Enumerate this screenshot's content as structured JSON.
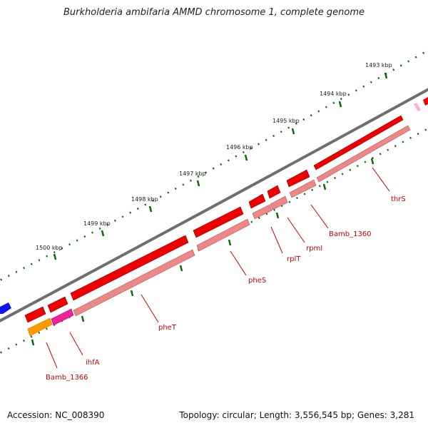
{
  "title": "Burkholderia ambifaria AMMD chromosome 1, complete genome",
  "footer": {
    "accession": "Accession: NC_008390",
    "topology": "Topology: circular; Length: 3,556,545 bp; Genes: 3,281"
  },
  "scale_ticks": [
    "1493 kbp",
    "1494 kbp",
    "1495 kbp",
    "1496 kbp",
    "1497 kbp",
    "1498 kbp",
    "1499 kbp",
    "1500 kbp"
  ],
  "genes": [
    "thrS",
    "Bamb_1360",
    "rpmI",
    "rplT",
    "pheS",
    "pheT",
    "ihfA",
    "Bamb_1366"
  ],
  "colors": {
    "backbone": "#777777",
    "gene_forward": "#ee0000",
    "gene_shadow": "#ee8888",
    "ihfA": "#ee2299",
    "Bamb_1366_shadow": "#ff9900",
    "blue_feature": "#1111ee",
    "pink_feature": "#ffaadd",
    "tick": "#006600",
    "label": "#cc0000"
  }
}
